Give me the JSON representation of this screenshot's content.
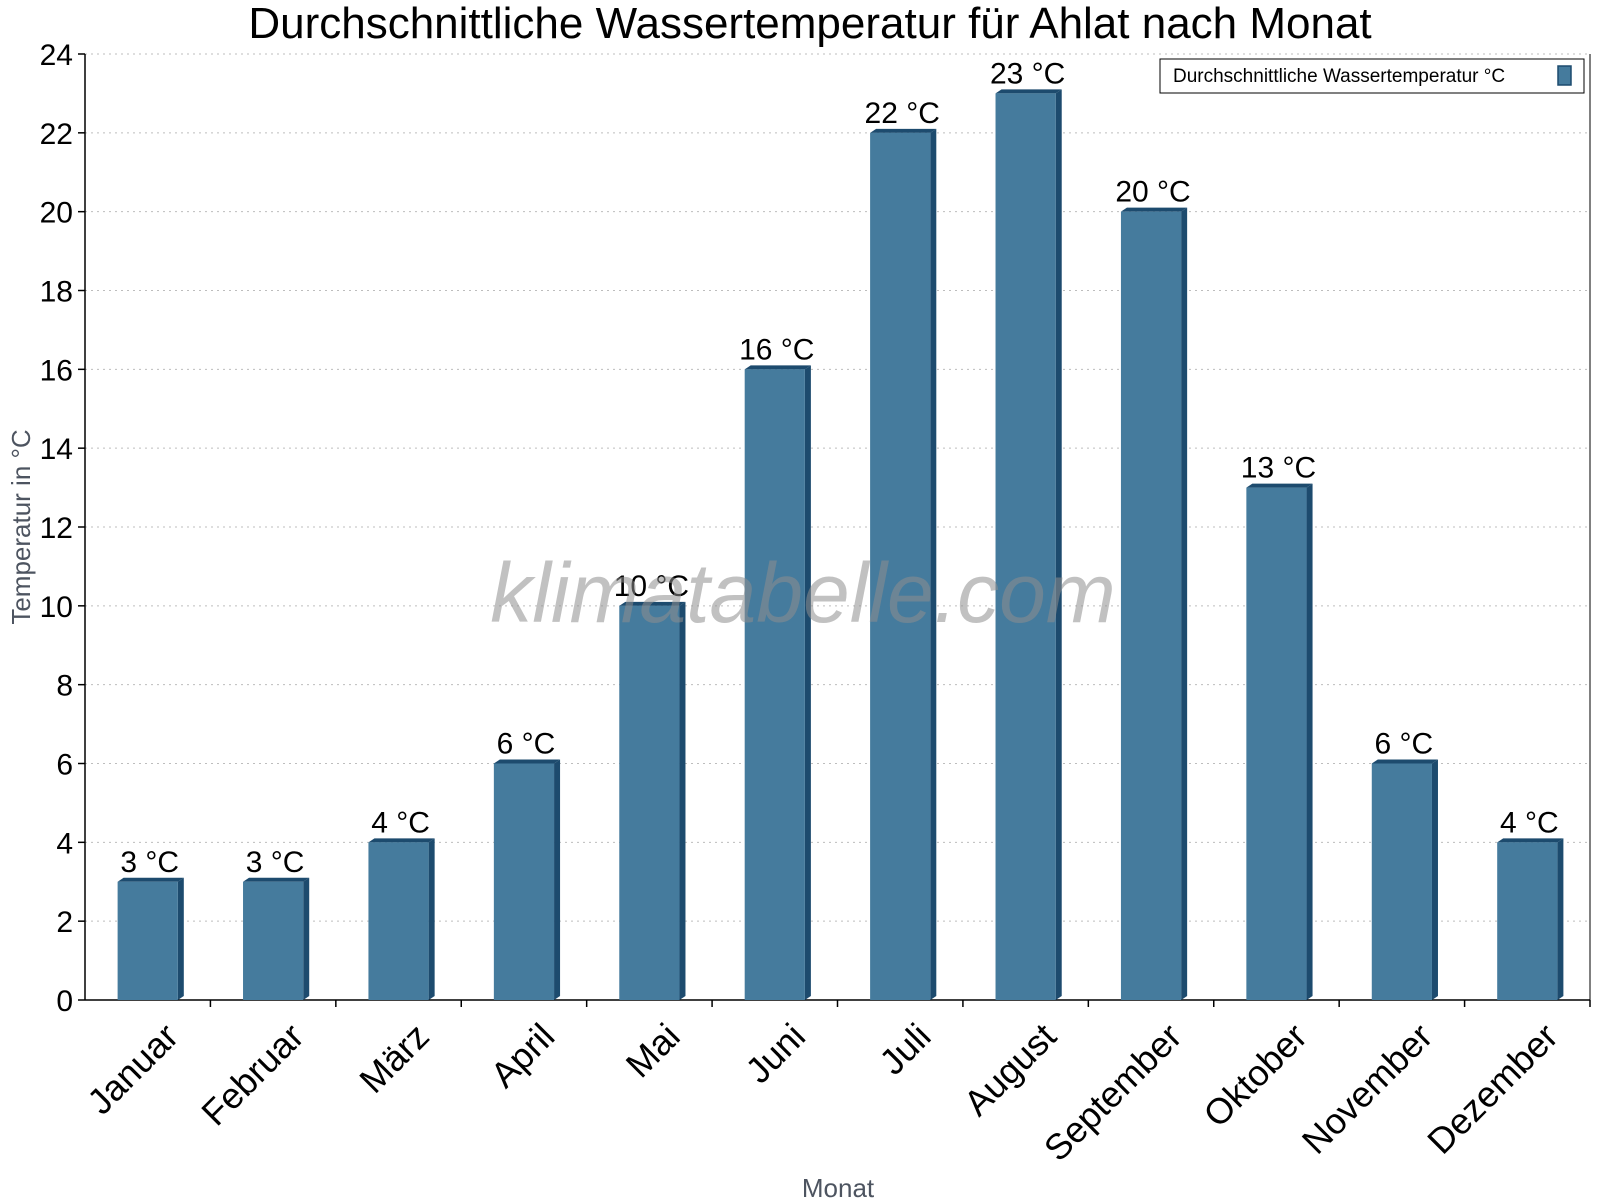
{
  "chart_data": {
    "type": "bar",
    "title": "Durchschnittliche Wassertemperatur für Ahlat nach Monat",
    "xlabel": "Monat",
    "ylabel": "Temperatur in °C",
    "categories": [
      "Januar",
      "Februar",
      "März",
      "April",
      "Mai",
      "Juni",
      "Juli",
      "August",
      "September",
      "Oktober",
      "November",
      "Dezember"
    ],
    "series": [
      {
        "name": "Durchschnittliche Wassertemperatur °C",
        "values": [
          3,
          3,
          4,
          6,
          10,
          16,
          22,
          23,
          20,
          13,
          6,
          4
        ],
        "data_labels": [
          "3 °C",
          "3 °C",
          "4 °C",
          "6 °C",
          "10 °C",
          "16 °C",
          "22 °C",
          "23 °C",
          "20 °C",
          "13 °C",
          "6 °C",
          "4 °C"
        ],
        "color": "#457b9d",
        "side_color": "#1d4b6e"
      }
    ],
    "ylim": [
      0,
      24
    ],
    "yticks": [
      0,
      2,
      4,
      6,
      8,
      10,
      12,
      14,
      16,
      18,
      20,
      22,
      24
    ],
    "grid": true,
    "legend_position": "top-right",
    "watermark": "klimatabelle.com"
  }
}
